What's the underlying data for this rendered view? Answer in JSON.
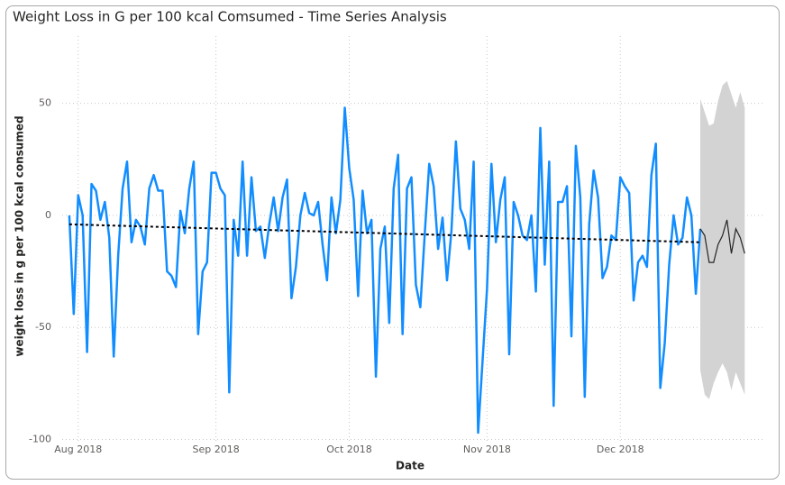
{
  "chart_data": {
    "type": "line",
    "title": "Weight Loss in G per 100 kcal Comsumed - Time Series Analysis",
    "x_label": "Date",
    "y_label": "weight loss in g per 100 kcal consumed",
    "xlim": [
      -1.6,
      156.4
    ],
    "xticks": [
      {
        "value": 2,
        "label": "Aug 2018"
      },
      {
        "value": 33,
        "label": "Sep 2018"
      },
      {
        "value": 63,
        "label": "Oct 2018"
      },
      {
        "value": 94,
        "label": "Nov 2018"
      },
      {
        "value": 124,
        "label": "Dec 2018"
      }
    ],
    "ylim": [
      -101,
      80
    ],
    "yticks": [
      50,
      0,
      -50,
      -100
    ],
    "grid": true,
    "series": [
      {
        "color": "#118dff",
        "values": [
          0,
          -44,
          9,
          0,
          -61,
          14,
          11,
          -2,
          6,
          -10,
          -63,
          -18,
          12,
          24,
          -12,
          -2,
          -5,
          -13,
          12,
          18,
          11,
          11,
          -25,
          -27,
          -32,
          2,
          -8,
          12,
          24,
          -53,
          -25,
          -21,
          19,
          19,
          12,
          9,
          -79,
          -2,
          -18,
          24,
          -18,
          17,
          -7,
          -5,
          -19,
          -4,
          8,
          -7,
          8,
          16,
          -37,
          -23,
          0,
          10,
          1,
          0,
          6,
          -13,
          -29,
          8,
          -8,
          7,
          48,
          21,
          7,
          -36,
          11,
          -8,
          -2,
          -72,
          -15,
          -5,
          -48,
          12,
          27,
          -53,
          12,
          17,
          -31,
          -41,
          -8,
          23,
          13,
          -15,
          -1,
          -29,
          -7,
          33,
          3,
          -2,
          -15,
          24,
          -97,
          -65,
          -33,
          23,
          -12,
          7,
          17,
          -62,
          6,
          0,
          -9,
          -11,
          0,
          -34,
          39,
          -22,
          24,
          -85,
          6,
          6,
          13,
          -54,
          31,
          8,
          -81,
          -4,
          20,
          8,
          -28,
          -23,
          -9,
          -11,
          17,
          13,
          10,
          -38,
          -21,
          -18,
          -23,
          18,
          32,
          -77,
          -57,
          -22,
          0,
          -13,
          -10,
          8,
          0,
          -35,
          -6
        ]
      }
    ],
    "trend": {
      "color": "#000000",
      "values": [
        -4,
        -12
      ]
    },
    "forecast": {
      "color": "#252423",
      "band_color": "#d3d3d3",
      "values": [
        -6,
        -9,
        -21,
        -21,
        -13,
        -9,
        -2,
        -17,
        -6,
        -10,
        -17
      ],
      "upper": [
        52,
        46,
        40,
        41,
        51,
        58,
        60,
        54,
        48,
        55,
        48
      ],
      "lower": [
        -69,
        -80,
        -82,
        -75,
        -70,
        -66,
        -70,
        -78,
        -70,
        -75,
        -80
      ]
    }
  }
}
